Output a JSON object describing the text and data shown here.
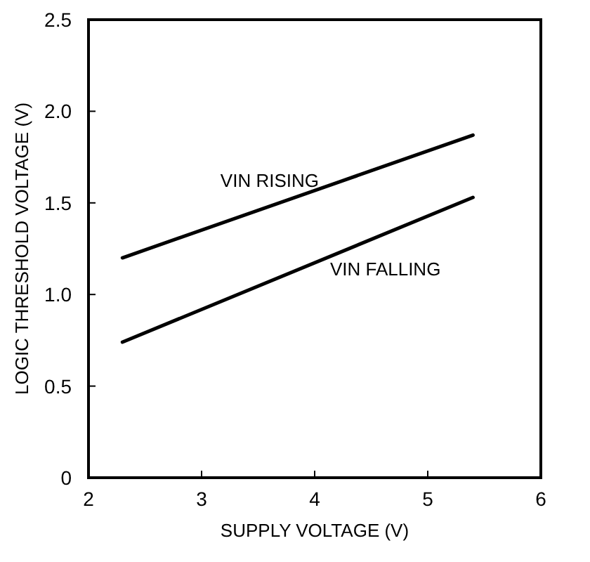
{
  "chart_data": {
    "type": "line",
    "xlabel": "SUPPLY VOLTAGE (V)",
    "ylabel": "LOGIC THRESHOLD VOLTAGE (V)",
    "xlim": [
      2,
      6
    ],
    "xticks": [
      2,
      3,
      4,
      5,
      6
    ],
    "ylim": [
      0,
      2.5
    ],
    "yticks": [
      0,
      {
        "value": 0.5,
        "label": "0.5"
      },
      {
        "value": 1,
        "label": "1.0"
      },
      {
        "value": 1.5,
        "label": "1.5"
      },
      {
        "value": 2,
        "label": "2.0"
      },
      {
        "value": 2.5,
        "label": "2.5"
      }
    ],
    "grid": false,
    "marker": "none",
    "line_style": "solid",
    "x": [
      2.3,
      5.4
    ],
    "series": [
      {
        "name": "VIN RISING",
        "color": "#000000",
        "values": [
          1.2,
          1.87
        ]
      },
      {
        "name": "VIN FALLING",
        "color": "#000000",
        "values": [
          0.74,
          1.53
        ]
      }
    ]
  }
}
